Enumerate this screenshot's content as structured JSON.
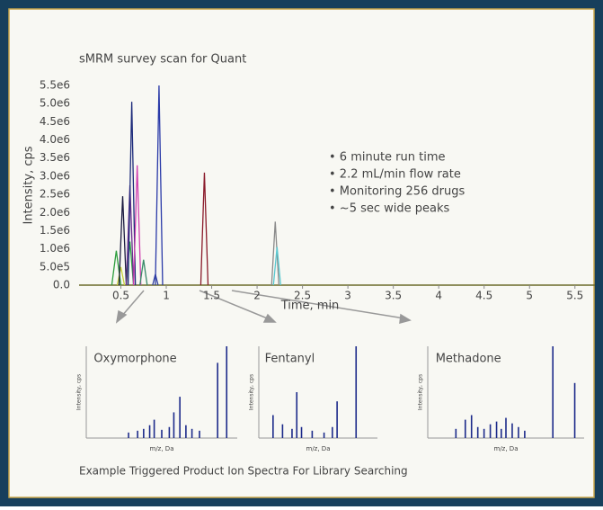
{
  "chart_data": [
    {
      "type": "peaks",
      "title": "sMRM survey scan for Quant",
      "xlabel": "Time, min",
      "ylabel": "Intensity, cps",
      "xlim": [
        0.04,
        5.72
      ],
      "ylim": [
        0,
        5500000
      ],
      "xticks": [
        0.5,
        1.0,
        1.5,
        2.0,
        2.5,
        3.0,
        3.5,
        4.0,
        4.5,
        5.0,
        5.5
      ],
      "yticks": [
        {
          "value": 0,
          "label": "0.0"
        },
        {
          "value": 500000,
          "label": "5.0e5"
        },
        {
          "value": 1000000,
          "label": "1.0e6"
        },
        {
          "value": 1500000,
          "label": "1.5e6"
        },
        {
          "value": 2000000,
          "label": "2.0e6"
        },
        {
          "value": 2500000,
          "label": "2.5e6"
        },
        {
          "value": 3000000,
          "label": "3.0e6"
        },
        {
          "value": 3500000,
          "label": "3.5e6"
        },
        {
          "value": 4000000,
          "label": "4.0e6"
        },
        {
          "value": 4500000,
          "label": "4.5e6"
        },
        {
          "value": 5000000,
          "label": "5.0e6"
        },
        {
          "value": 5500000,
          "label": "5.5e6"
        }
      ],
      "series": [
        {
          "color": "#2e9e3e",
          "x": [
            0.4,
            0.45,
            0.5
          ],
          "values": [
            0,
            950000,
            0
          ]
        },
        {
          "color": "#c8d13a",
          "x": [
            0.46,
            0.5,
            0.54
          ],
          "values": [
            0,
            500000,
            0
          ]
        },
        {
          "color": "#1a1a40",
          "x": [
            0.48,
            0.52,
            0.56
          ],
          "values": [
            0,
            2450000,
            0
          ]
        },
        {
          "color": "#33a04a",
          "x": [
            0.56,
            0.6,
            0.64
          ],
          "values": [
            0,
            1200000,
            0
          ]
        },
        {
          "color": "#6a2c8e",
          "x": [
            0.56,
            0.6,
            0.64
          ],
          "values": [
            0,
            2750000,
            0
          ]
        },
        {
          "color": "#1c2a7a",
          "x": [
            0.58,
            0.62,
            0.66
          ],
          "values": [
            0,
            5050000,
            0
          ]
        },
        {
          "color": "#d040b0",
          "x": [
            0.64,
            0.68,
            0.72
          ],
          "values": [
            0,
            3300000,
            0
          ]
        },
        {
          "color": "#3a8a6a",
          "x": [
            0.71,
            0.75,
            0.79
          ],
          "values": [
            0,
            700000,
            0
          ]
        },
        {
          "color": "#3040a0",
          "x": [
            0.85,
            0.88,
            0.91
          ],
          "values": [
            0,
            300000,
            0
          ]
        },
        {
          "color": "#2a3aa8",
          "x": [
            0.88,
            0.92,
            0.96
          ],
          "values": [
            0,
            5500000,
            0
          ]
        },
        {
          "color": "#8a1a2a",
          "x": [
            1.38,
            1.42,
            1.46
          ],
          "values": [
            0,
            3100000,
            0
          ]
        },
        {
          "color": "#8a8a8a",
          "x": [
            2.16,
            2.2,
            2.24
          ],
          "values": [
            0,
            1750000,
            0
          ]
        },
        {
          "color": "#5ac8d0",
          "x": [
            2.18,
            2.22,
            2.26
          ],
          "values": [
            0,
            1050000,
            0
          ]
        }
      ],
      "annotations": [
        "• 6 minute run time",
        "• 2.2 mL/min flow rate",
        "• Monitoring 256 drugs",
        "• ~5 sec wide peaks"
      ]
    },
    {
      "type": "spectrum",
      "title": "Oxymorphone",
      "xlabel": "m/z, Da",
      "ylabel": "Intensity, cps",
      "color": "#1c2a8a",
      "xlim": [
        0,
        100
      ],
      "ylim": [
        0,
        100
      ],
      "x": [
        28,
        34,
        38,
        42,
        45,
        50,
        55,
        58,
        62,
        66,
        70,
        75,
        87,
        93
      ],
      "values": [
        6,
        8,
        10,
        14,
        20,
        9,
        12,
        28,
        45,
        14,
        10,
        8,
        82,
        100
      ]
    },
    {
      "type": "spectrum",
      "title": "Fentanyl",
      "xlabel": "m/z, Da",
      "ylabel": "Intensity, cps",
      "color": "#1c2a8a",
      "xlim": [
        0,
        100
      ],
      "ylim": [
        0,
        100
      ],
      "x": [
        12,
        20,
        28,
        32,
        36,
        45,
        55,
        62,
        66,
        82
      ],
      "values": [
        25,
        15,
        10,
        50,
        12,
        8,
        6,
        12,
        40,
        100
      ]
    },
    {
      "type": "spectrum",
      "title": "Methadone",
      "xlabel": "m/z, Da",
      "ylabel": "Intensity, cps",
      "color": "#1c2a8a",
      "xlim": [
        0,
        100
      ],
      "ylim": [
        0,
        100
      ],
      "x": [
        18,
        24,
        28,
        32,
        36,
        40,
        44,
        47,
        50,
        54,
        58,
        62,
        80,
        94
      ],
      "values": [
        10,
        20,
        25,
        12,
        10,
        15,
        18,
        10,
        22,
        16,
        12,
        8,
        100,
        60
      ]
    }
  ],
  "caption": "Example Triggered Product Ion Spectra For Library Searching"
}
